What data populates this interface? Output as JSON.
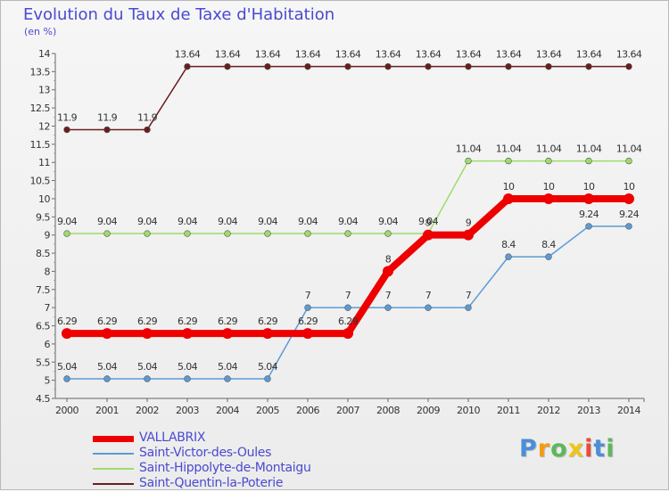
{
  "header": {
    "title": "Evolution du Taux de Taxe d'Habitation",
    "unit": "(en %)"
  },
  "chart_data": {
    "type": "line",
    "title": "Evolution du Taux de Taxe d'Habitation",
    "ylabel": "(en %)",
    "xlabel": "",
    "x": [
      "2000",
      "2001",
      "2002",
      "2003",
      "2004",
      "2005",
      "2006",
      "2007",
      "2008",
      "2009",
      "2010",
      "2011",
      "2012",
      "2013",
      "2014"
    ],
    "ylim": [
      4.5,
      14
    ],
    "yticks": [
      4.5,
      5,
      5.5,
      6,
      6.5,
      7,
      7.5,
      8,
      8.5,
      9,
      9.5,
      10,
      10.5,
      11,
      11.5,
      12,
      12.5,
      13,
      13.5,
      14
    ],
    "grid": false,
    "legend_position": "bottom-left",
    "series": [
      {
        "name": "Saint-Quentin-la-Poterie",
        "color": "#6b1d1d",
        "values": [
          11.9,
          11.9,
          11.9,
          13.64,
          13.64,
          13.64,
          13.64,
          13.64,
          13.64,
          13.64,
          13.64,
          13.64,
          13.64,
          13.64,
          13.64
        ],
        "labels": [
          "11.9",
          "11.9",
          "11.9",
          "13.64",
          "13.64",
          "13.64",
          "13.64",
          "13.64",
          "13.64",
          "13.64",
          "13.64",
          "13.64",
          "13.64",
          "13.64",
          "13.64"
        ]
      },
      {
        "name": "Saint-Hippolyte-de-Montaigu",
        "color": "#9edc6a",
        "values": [
          9.04,
          9.04,
          9.04,
          9.04,
          9.04,
          9.04,
          9.04,
          9.04,
          9.04,
          9.04,
          11.04,
          11.04,
          11.04,
          11.04,
          11.04
        ],
        "labels": [
          "9.04",
          "9.04",
          "9.04",
          "9.04",
          "9.04",
          "9.04",
          "9.04",
          "9.04",
          "9.04",
          "9.04",
          "11.04",
          "11.04",
          "11.04",
          "11.04",
          "11.04"
        ]
      },
      {
        "name": "Saint-Victor-des-Oules",
        "color": "#5b9bd5",
        "values": [
          5.04,
          5.04,
          5.04,
          5.04,
          5.04,
          5.04,
          7,
          7,
          7,
          7,
          7,
          8.4,
          8.4,
          9.24,
          9.24
        ],
        "labels": [
          "5.04",
          "5.04",
          "5.04",
          "5.04",
          "5.04",
          "5.04",
          "7",
          "7",
          "7",
          "7",
          "7",
          "8.4",
          "8.4",
          "9.24",
          "9.24"
        ]
      },
      {
        "name": "VALLABRIX",
        "color": "#ee0000",
        "values": [
          6.29,
          6.29,
          6.29,
          6.29,
          6.29,
          6.29,
          6.29,
          6.29,
          8,
          9,
          9,
          10,
          10,
          10,
          10
        ],
        "labels": [
          "6.29",
          "6.29",
          "6.29",
          "6.29",
          "6.29",
          "6.29",
          "6.29",
          "6.29",
          "8",
          "9",
          "9",
          "10",
          "10",
          "10",
          "10"
        ]
      }
    ]
  },
  "legend": [
    {
      "label": "VALLABRIX",
      "color": "#ee0000",
      "weight": 7
    },
    {
      "label": "Saint-Victor-des-Oules",
      "color": "#5b9bd5",
      "weight": 1.5
    },
    {
      "label": "Saint-Hippolyte-de-Montaigu",
      "color": "#9edc6a",
      "weight": 1.5
    },
    {
      "label": "Saint-Quentin-la-Poterie",
      "color": "#6b1d1d",
      "weight": 1.5
    }
  ],
  "brand": {
    "logo_letters": [
      "P",
      "r",
      "o",
      "x",
      "i",
      "t",
      "i"
    ],
    "logo_colors": [
      "#4a8fd8",
      "#f39c12",
      "#5cb85c",
      "#f0c419",
      "#e74c3c",
      "#4a8fd8",
      "#5cb85c"
    ]
  }
}
